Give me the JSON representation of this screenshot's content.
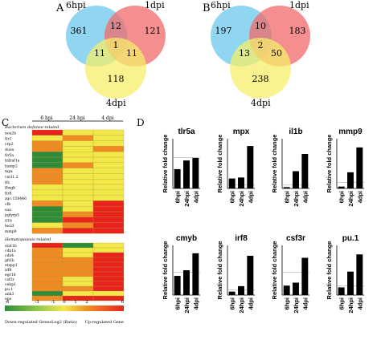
{
  "panels": {
    "A": {
      "letter": "A",
      "set_labels": [
        "6hpi",
        "1dpi",
        "4dpi"
      ],
      "regions": {
        "a_only": "361",
        "b_only": "121",
        "c_only": "118",
        "ab": "12",
        "ac": "11",
        "bc": "11",
        "abc": "1"
      }
    },
    "B": {
      "letter": "B",
      "set_labels": [
        "6hpi",
        "1dpi",
        "4dpi"
      ],
      "regions": {
        "a_only": "197",
        "b_only": "183",
        "c_only": "238",
        "ab": "10",
        "ac": "13",
        "bc": "50",
        "abc": "2"
      }
    },
    "C": {
      "letter": "C",
      "columns": [
        "6 hpi",
        "24 hpi",
        "4 dpi"
      ],
      "section1_title": "Bacterium defense-related",
      "section1_genes": [
        "nos2b",
        "tlr1",
        "crp2",
        "duox",
        "tlr5a",
        "tnfrsf1a",
        "hamp2",
        "mpx",
        "cxcl1.2",
        "tfs",
        "fbxgb",
        "tlr8",
        "zgc:158446",
        "cfb",
        "saa",
        "pglyrp5",
        "il1b",
        "leo2l",
        "mmp9"
      ],
      "section2_title": "Hematopoiesis-related",
      "section2_genes": [
        "stat1b",
        "cdx1a",
        "cdx4",
        "gfi1b",
        "etspp1",
        "irf8",
        "egr18",
        "csf3r",
        "cebp1",
        "pu.1",
        "ank3",
        "epo"
      ],
      "scale_ticks": [
        "-6",
        "-3",
        "-1",
        "0",
        "1",
        "2",
        "6"
      ],
      "scale_left": "Down-regulated Genes",
      "scale_middle": "Log2 (Ratio)",
      "scale_right": "Up-regulated Gene",
      "colors": {
        "green": "#2e8b3a",
        "yellow": "#f3e84a",
        "orange": "#f08a24",
        "red": "#e8231d"
      }
    },
    "D": {
      "letter": "D",
      "ylabel": "Relative fold change"
    }
  },
  "chart_data": [
    {
      "type": "bar",
      "title": "tlr5a",
      "categories": [
        "6hpi",
        "24hpi",
        "4dpi"
      ],
      "values": [
        0.62,
        0.9,
        0.98
      ],
      "ylabel": "Relative fold change",
      "ylim": [
        0,
        1.6
      ],
      "baseline": 1
    },
    {
      "type": "bar",
      "title": "mpx",
      "categories": [
        "6hpi",
        "24hpi",
        "4dpi"
      ],
      "values": [
        3.0,
        3.3,
        12.8
      ],
      "ylabel": "Relative fold change",
      "ylim": [
        0,
        15
      ],
      "baseline": 1
    },
    {
      "type": "bar",
      "title": "il1b",
      "categories": [
        "6hpi",
        "24hpi",
        "4dpi"
      ],
      "values": [
        0.4,
        5.2,
        10.4
      ],
      "ylabel": "Relative fold change",
      "ylim": [
        0,
        15
      ],
      "baseline": 1
    },
    {
      "type": "bar",
      "title": "mmp9",
      "categories": [
        "6hpi",
        "24hpi",
        "4dpi"
      ],
      "values": [
        0.3,
        2.6,
        6.6
      ],
      "ylabel": "Relative fold change",
      "ylim": [
        0,
        8
      ],
      "baseline": 1
    },
    {
      "type": "bar",
      "title": "cmyb",
      "categories": [
        "6hpi",
        "24hpi",
        "4dpi"
      ],
      "values": [
        0.85,
        1.1,
        1.85
      ],
      "ylabel": "Relative fold change",
      "ylim": [
        0,
        2.2
      ],
      "baseline": 1
    },
    {
      "type": "bar",
      "title": "irf8",
      "categories": [
        "6hpi",
        "24hpi",
        "4dpi"
      ],
      "values": [
        0.7,
        1.8,
        7.9
      ],
      "ylabel": "Relative fold change",
      "ylim": [
        0,
        10
      ],
      "baseline": 1
    },
    {
      "type": "bar",
      "title": "csf3r",
      "categories": [
        "6hpi",
        "24hpi",
        "4dpi"
      ],
      "values": [
        0.42,
        0.55,
        1.65
      ],
      "ylabel": "Relative fold change",
      "ylim": [
        0,
        2.2
      ],
      "baseline": 1
    },
    {
      "type": "bar",
      "title": "pu.1",
      "categories": [
        "6hpi",
        "24hpi",
        "4dpi"
      ],
      "values": [
        0.85,
        2.6,
        4.5
      ],
      "ylabel": "Relative fold change",
      "ylim": [
        0,
        5.5
      ],
      "baseline": 1
    }
  ]
}
